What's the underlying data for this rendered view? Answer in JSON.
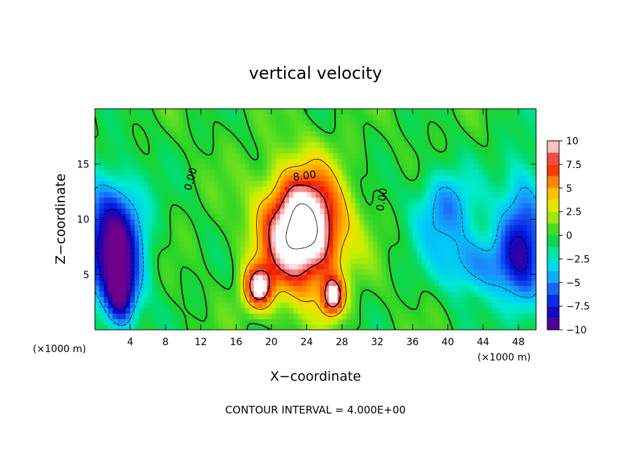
{
  "chart_data": {
    "type": "heatmap",
    "title": "vertical velocity",
    "xlabel": "X−coordinate",
    "ylabel": "Z−coordinate",
    "x_unit_left": "(×1000 m)",
    "x_unit_right": "(×1000 m)",
    "xlim": [
      0,
      50
    ],
    "ylim": [
      0,
      20
    ],
    "x_ticks": [
      4,
      8,
      12,
      16,
      20,
      24,
      28,
      32,
      36,
      40,
      44,
      48
    ],
    "y_ticks": [
      5,
      10,
      15
    ],
    "colorbar": {
      "vmin": -10,
      "vmax": 10,
      "ticks": [
        10,
        7.5,
        5,
        2.5,
        0,
        -2.5,
        -5,
        -7.5,
        -10
      ],
      "tick_labels": [
        "10",
        "7.5",
        "5",
        "2.5",
        "0",
        "−2.5",
        "−5",
        "−7.5",
        "−10"
      ]
    },
    "contour_labels": [
      "8.00",
      "0.00",
      "0.00"
    ],
    "footer": "CONTOUR INTERVAL = 4.000E+00",
    "features": [
      {
        "kind": "updraft",
        "x": 23.5,
        "z": 9,
        "peak": 14,
        "sx": 3.2,
        "sz": 3.8
      },
      {
        "kind": "updraft",
        "x": 18.5,
        "z": 3.8,
        "peak": 9,
        "sx": 1.2,
        "sz": 1.4
      },
      {
        "kind": "updraft",
        "x": 27,
        "z": 3,
        "peak": 9,
        "sx": 0.9,
        "sz": 1.2
      },
      {
        "kind": "downdraft",
        "x": 2,
        "z": 8,
        "peak": -10,
        "sx": 2.5,
        "sz": 4
      },
      {
        "kind": "downdraft",
        "x": 3,
        "z": 3,
        "peak": -7,
        "sx": 1.2,
        "sz": 2
      },
      {
        "kind": "downdraft",
        "x": 48.5,
        "z": 8,
        "peak": -7,
        "sx": 2,
        "sz": 5
      },
      {
        "kind": "downdraft",
        "x": 39.5,
        "z": 11,
        "peak": -5,
        "sx": 2.5,
        "sz": 2.5
      },
      {
        "kind": "downdraft",
        "x": 43,
        "z": 6,
        "peak": -5,
        "sx": 3,
        "sz": 2
      }
    ]
  }
}
